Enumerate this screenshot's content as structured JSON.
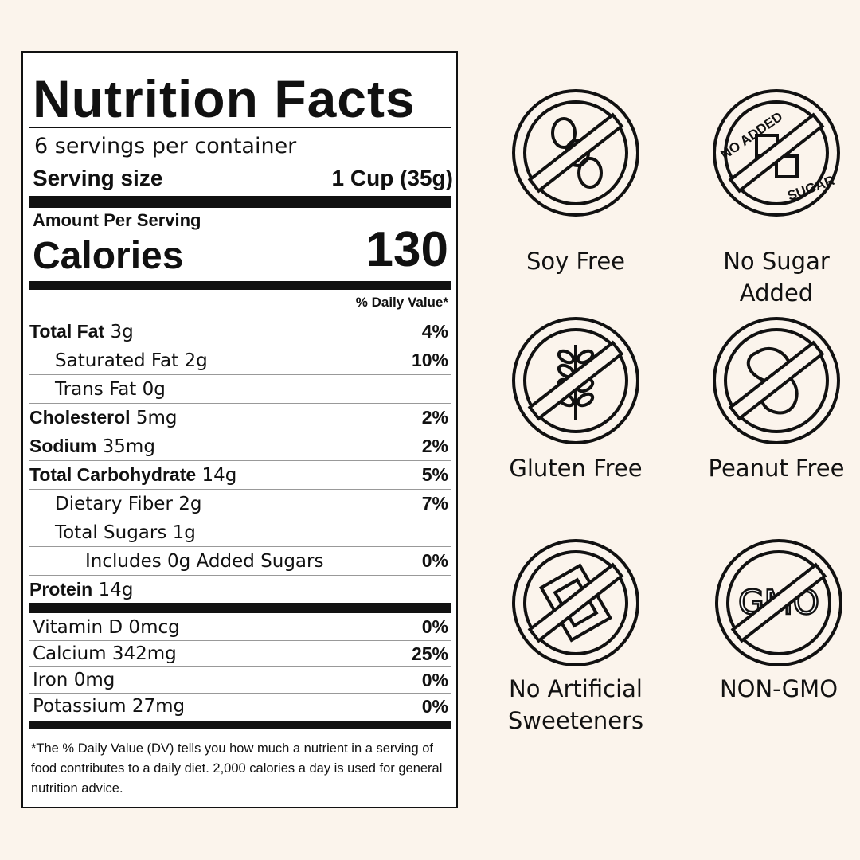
{
  "label": {
    "title": "Nutrition Facts",
    "servings_per_container": "6 servings per container",
    "serving_size_label": "Serving size",
    "serving_size_value": "1 Cup (35g)",
    "amount_per_serving": "Amount Per Serving",
    "calories_label": "Calories",
    "calories_value": "130",
    "daily_value_header": "% Daily Value*",
    "nutrients": [
      {
        "name": "Total Fat",
        "amount": "3g",
        "dv": "4%",
        "bold": true,
        "indent": 0
      },
      {
        "name": "Saturated Fat",
        "amount": "2g",
        "dv": "10%",
        "bold": false,
        "indent": 1
      },
      {
        "name": "Trans Fat",
        "amount": "0g",
        "dv": "",
        "bold": false,
        "indent": 1
      },
      {
        "name": "Cholesterol",
        "amount": "5mg",
        "dv": "2%",
        "bold": true,
        "indent": 0
      },
      {
        "name": "Sodium",
        "amount": "35mg",
        "dv": "2%",
        "bold": true,
        "indent": 0
      },
      {
        "name": "Total Carbohydrate",
        "amount": "14g",
        "dv": "5%",
        "bold": true,
        "indent": 0
      },
      {
        "name": "Dietary Fiber",
        "amount": "2g",
        "dv": "7%",
        "bold": false,
        "indent": 1
      },
      {
        "name": "Total Sugars",
        "amount": "1g",
        "dv": "",
        "bold": false,
        "indent": 1
      },
      {
        "name": "Includes 0g Added Sugars",
        "amount": "",
        "dv": "0%",
        "bold": false,
        "indent": 2
      },
      {
        "name": "Protein",
        "amount": "14g",
        "dv": "",
        "bold": true,
        "indent": 0
      }
    ],
    "vitamins": [
      {
        "name": "Vitamin D 0mcg",
        "dv": "0%"
      },
      {
        "name": "Calcium 342mg",
        "dv": "25%"
      },
      {
        "name": "Iron 0mg",
        "dv": "0%"
      },
      {
        "name": "Potassium 27mg",
        "dv": "0%"
      }
    ],
    "footnote": "*The % Daily Value (DV) tells you how much a nutrient in a serving of food contributes to a daily diet. 2,000 calories a day is used for general nutrition advice."
  },
  "badges": [
    {
      "label": "Soy Free",
      "icon": "soy-bean-icon"
    },
    {
      "label": "No Sugar Added",
      "icon": "sugar-cube-icon",
      "ring_text_top": "NO ADDED",
      "ring_text_bottom": "SUGAR"
    },
    {
      "label": "Gluten Free",
      "icon": "wheat-icon"
    },
    {
      "label": "Peanut Free",
      "icon": "peanut-icon"
    },
    {
      "label": "No Artificial Sweeteners",
      "icon": "sweetener-packet-icon"
    },
    {
      "label": "NON-GMO",
      "icon": "gmo-icon",
      "icon_text": "GMO"
    }
  ],
  "colors": {
    "background": "#fbf4ec",
    "ink": "#111111",
    "panel": "#ffffff"
  }
}
